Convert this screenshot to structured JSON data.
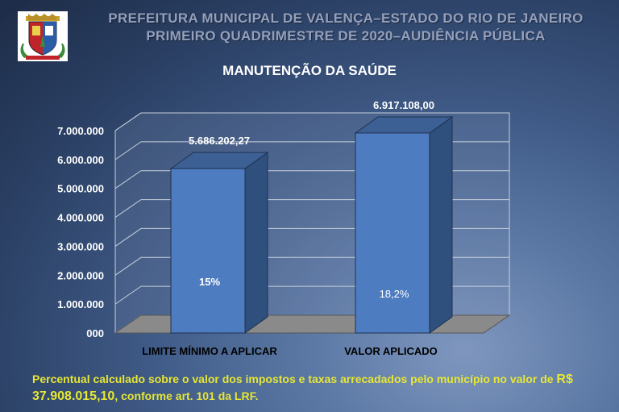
{
  "header": {
    "line1": "PREFEITURA MUNICIPAL DE VALENÇA–ESTADO DO RIO DE JANEIRO",
    "line2": "PRIMEIRO QUADRIMESTRE DE 2020–AUDIÊNCIA PÚBLICA"
  },
  "logo": {
    "icon": "municipal-coat-of-arms-icon"
  },
  "chart_data": {
    "type": "bar",
    "title": "MANUTENÇÃO DA SAÚDE",
    "categories": [
      "LIMITE MÍNIMO A APLICAR",
      "VALOR APLICADO"
    ],
    "values": [
      5686202.27,
      6917108.0
    ],
    "value_labels": [
      "5.686.202,27",
      "6.917.108,00"
    ],
    "inner_labels": [
      "15%",
      "18,2%"
    ],
    "y_ticks": [
      "000",
      "1.000.000",
      "2.000.000",
      "3.000.000",
      "4.000.000",
      "5.000.000",
      "6.000.000",
      "7.000.000"
    ],
    "ylim": [
      0,
      7000000
    ],
    "grid": true,
    "colors": {
      "bar_front": "#4e7cc0",
      "bar_side": "#2f4f7d",
      "bar_top": "#3d6094",
      "floor": "#8a8a8a",
      "wall": "#8496b7"
    }
  },
  "footnote": {
    "text_before": "Percentual calculado sobre o valor dos impostos e taxas arrecadados pelo município  no valor de ",
    "amount": "R$ 37.908.015,10",
    "text_after": ", conforme art. 101 da LRF."
  }
}
